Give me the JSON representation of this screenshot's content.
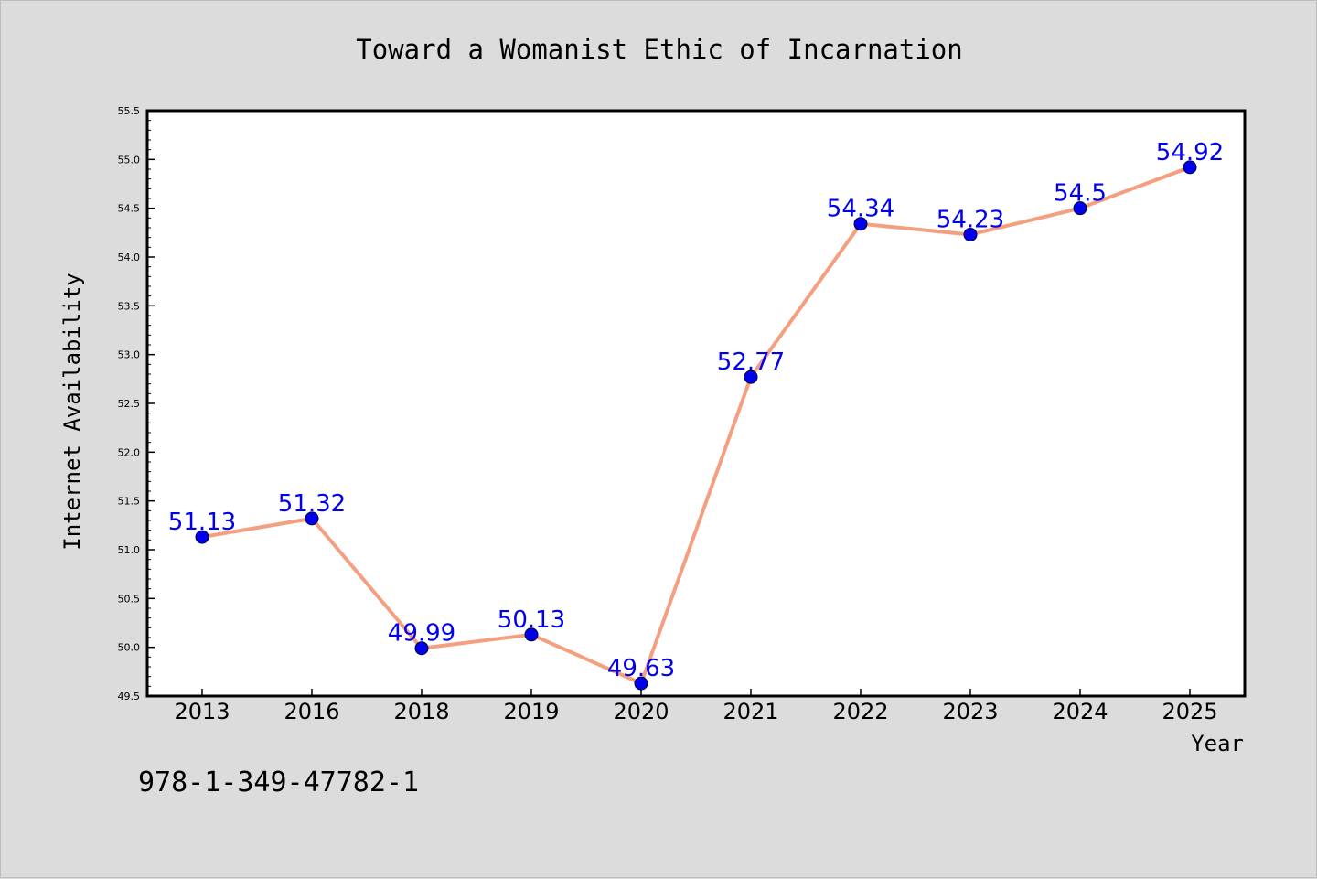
{
  "chart_data": {
    "type": "line",
    "title": "Toward a Womanist Ethic of Incarnation",
    "xlabel": "Year",
    "ylabel": "Internet Availability",
    "categories": [
      "2013",
      "2016",
      "2018",
      "2019",
      "2020",
      "2021",
      "2022",
      "2023",
      "2024",
      "2025"
    ],
    "series": [
      {
        "values": [
          51.13,
          51.32,
          49.99,
          50.13,
          49.63,
          52.77,
          54.34,
          54.23,
          54.5,
          54.92
        ]
      }
    ],
    "data_labels": [
      "51.13",
      "51.32",
      "49.99",
      "50.13",
      "49.63",
      "52.77",
      "54.34",
      "54.23",
      "54.5",
      "54.92"
    ],
    "ylim": [
      49.5,
      55.5
    ],
    "yticks": [
      49.5,
      50.0,
      50.5,
      51.0,
      51.5,
      52.0,
      52.5,
      53.0,
      53.5,
      54.0,
      54.5,
      55.0,
      55.5
    ],
    "ytick_labels": [
      "49.5",
      "50.0",
      "50.5",
      "51.0",
      "51.5",
      "52.0",
      "52.5",
      "53.0",
      "53.5",
      "54.0",
      "54.5",
      "55.0",
      "55.5"
    ],
    "grid": false,
    "line_color": "#f4a080",
    "marker_color": "#0000ee",
    "label_color": "#0000ee"
  },
  "footer": {
    "isbn": "978-1-349-47782-1"
  },
  "colors": {
    "background": "#dcdcdc",
    "plot_background": "#ffffff",
    "axis": "#000000"
  }
}
